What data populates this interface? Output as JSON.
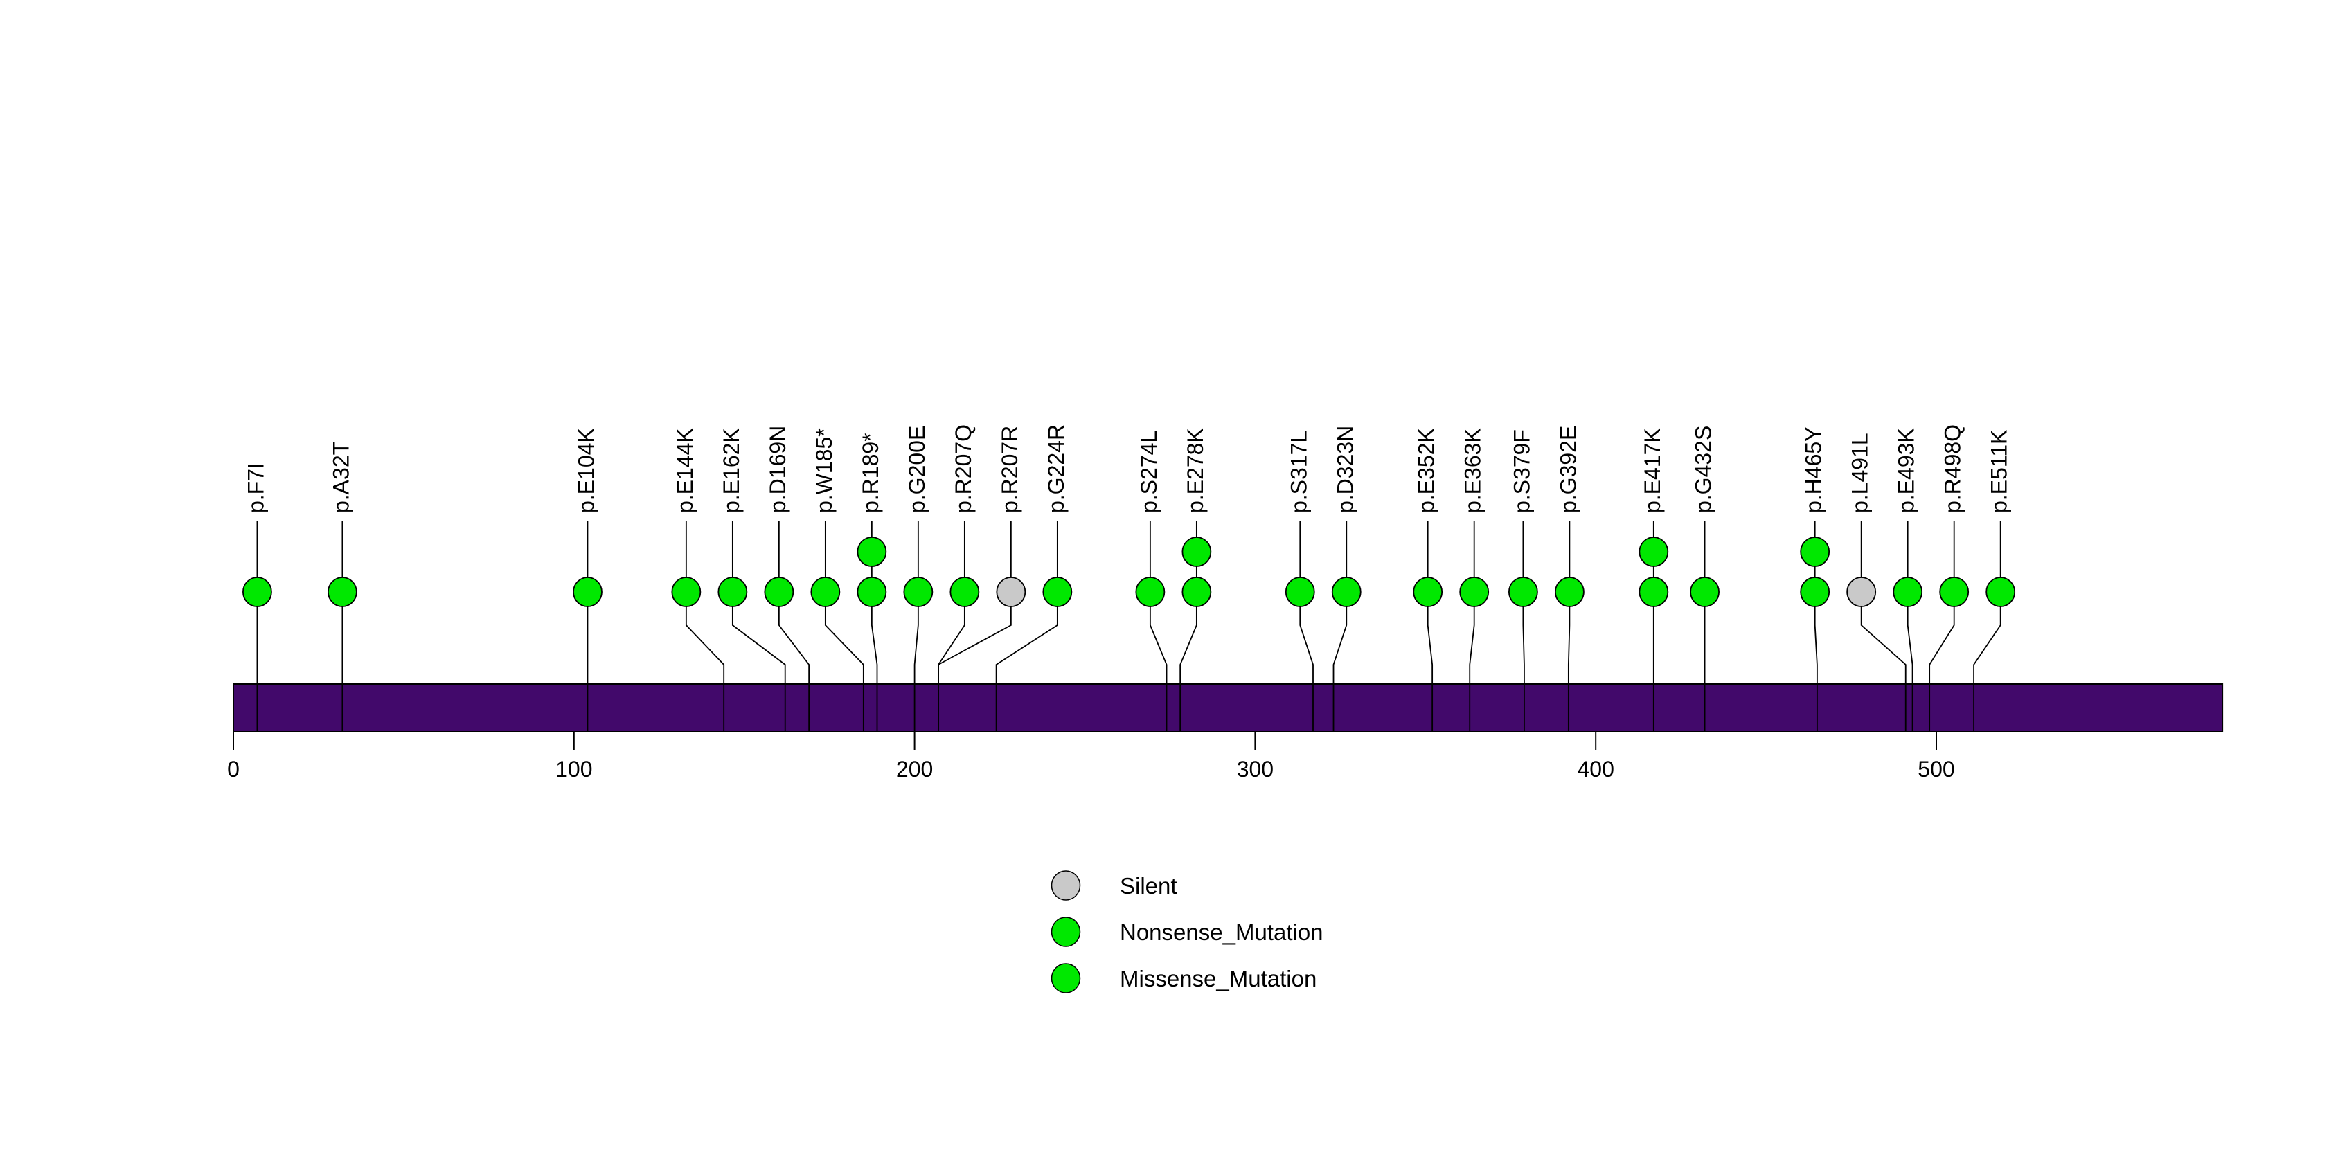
{
  "chart_data": {
    "type": "lollipop",
    "title": "",
    "xlabel": "",
    "ylabel": "",
    "xlim": [
      0,
      584
    ],
    "x_ticks": [
      0,
      100,
      200,
      300,
      400,
      500
    ],
    "protein_length_aa": 584,
    "grid": false,
    "legend_position": "bottom",
    "mutations": [
      {
        "label": "p.F7I",
        "position": 7,
        "count": 1,
        "class": "Missense_Mutation"
      },
      {
        "label": "p.A32T",
        "position": 32,
        "count": 1,
        "class": "Missense_Mutation"
      },
      {
        "label": "p.E104K",
        "position": 104,
        "count": 1,
        "class": "Missense_Mutation"
      },
      {
        "label": "p.E144K",
        "position": 144,
        "count": 1,
        "class": "Missense_Mutation"
      },
      {
        "label": "p.E162K",
        "position": 162,
        "count": 1,
        "class": "Missense_Mutation"
      },
      {
        "label": "p.D169N",
        "position": 169,
        "count": 1,
        "class": "Missense_Mutation"
      },
      {
        "label": "p.W185*",
        "position": 185,
        "count": 1,
        "class": "Nonsense_Mutation"
      },
      {
        "label": "p.R189*",
        "position": 189,
        "count": 2,
        "class": "Nonsense_Mutation"
      },
      {
        "label": "p.G200E",
        "position": 200,
        "count": 1,
        "class": "Missense_Mutation"
      },
      {
        "label": "p.R207Q",
        "position": 207,
        "count": 1,
        "class": "Missense_Mutation"
      },
      {
        "label": "p.R207R",
        "position": 207,
        "count": 1,
        "class": "Silent"
      },
      {
        "label": "p.G224R",
        "position": 224,
        "count": 1,
        "class": "Missense_Mutation"
      },
      {
        "label": "p.S274L",
        "position": 274,
        "count": 1,
        "class": "Missense_Mutation"
      },
      {
        "label": "p.E278K",
        "position": 278,
        "count": 2,
        "class": "Missense_Mutation"
      },
      {
        "label": "p.S317L",
        "position": 317,
        "count": 1,
        "class": "Missense_Mutation"
      },
      {
        "label": "p.D323N",
        "position": 323,
        "count": 1,
        "class": "Missense_Mutation"
      },
      {
        "label": "p.E352K",
        "position": 352,
        "count": 1,
        "class": "Missense_Mutation"
      },
      {
        "label": "p.E363K",
        "position": 363,
        "count": 1,
        "class": "Missense_Mutation"
      },
      {
        "label": "p.S379F",
        "position": 379,
        "count": 1,
        "class": "Missense_Mutation"
      },
      {
        "label": "p.G392E",
        "position": 392,
        "count": 1,
        "class": "Missense_Mutation"
      },
      {
        "label": "p.E417K",
        "position": 417,
        "count": 2,
        "class": "Missense_Mutation"
      },
      {
        "label": "p.G432S",
        "position": 432,
        "count": 1,
        "class": "Missense_Mutation"
      },
      {
        "label": "p.H465Y",
        "position": 465,
        "count": 2,
        "class": "Missense_Mutation"
      },
      {
        "label": "p.L491L",
        "position": 491,
        "count": 1,
        "class": "Silent"
      },
      {
        "label": "p.E493K",
        "position": 493,
        "count": 1,
        "class": "Missense_Mutation"
      },
      {
        "label": "p.R498Q",
        "position": 498,
        "count": 1,
        "class": "Missense_Mutation"
      },
      {
        "label": "p.E511K",
        "position": 511,
        "count": 1,
        "class": "Missense_Mutation"
      }
    ],
    "legend": [
      {
        "label": "Silent",
        "color": "#C9C9C9"
      },
      {
        "label": "Nonsense_Mutation",
        "color": "#00E800"
      },
      {
        "label": "Missense_Mutation",
        "color": "#00E800"
      }
    ],
    "colors": {
      "Silent": "#C9C9C9",
      "Nonsense_Mutation": "#00E800",
      "Missense_Mutation": "#00E800",
      "protein_bar": "#42096B",
      "stroke": "#000000"
    }
  }
}
